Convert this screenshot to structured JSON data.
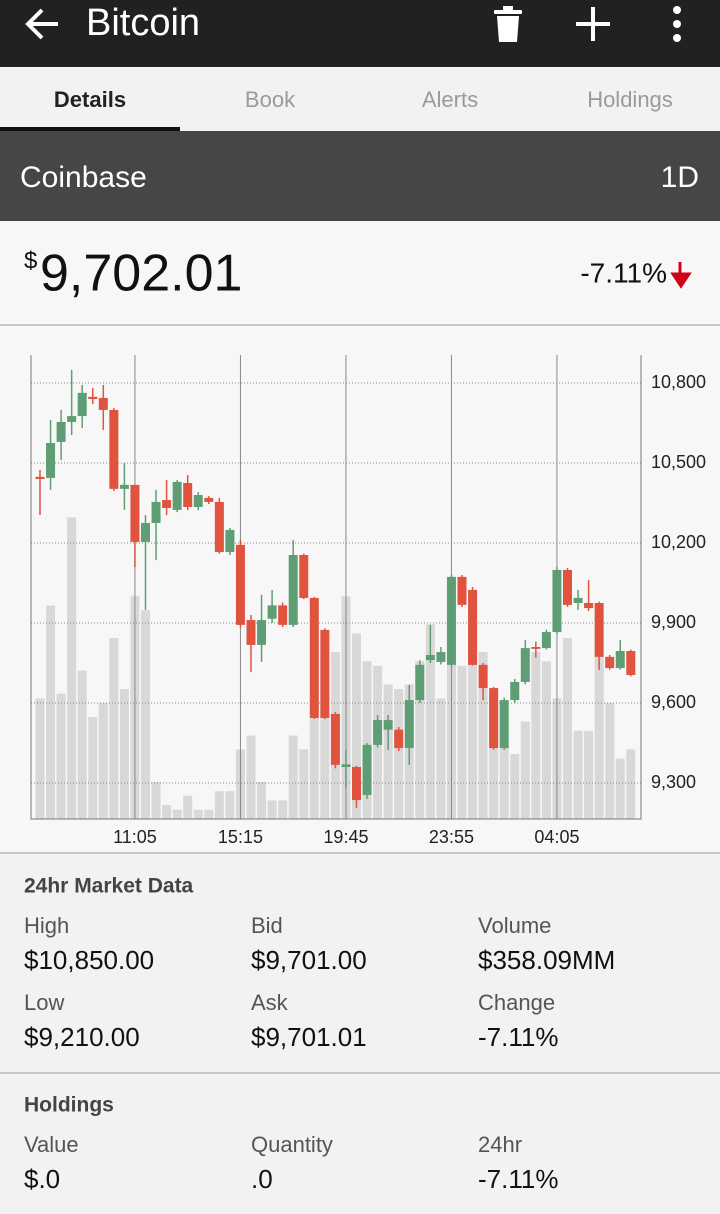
{
  "app_bar": {
    "title": "Bitcoin"
  },
  "tabs": {
    "items": [
      "Details",
      "Book",
      "Alerts",
      "Holdings"
    ],
    "selected": 0
  },
  "exchange": {
    "name": "Coinbase",
    "range": "1D"
  },
  "price": {
    "currency": "$",
    "value": "9,702.01",
    "change": "-7.11%"
  },
  "chart_data": {
    "type": "candlestick",
    "categories": [
      null,
      null,
      null,
      null,
      null,
      null,
      null,
      null,
      null,
      "11:05",
      null,
      null,
      null,
      null,
      null,
      null,
      null,
      null,
      null,
      "15:15",
      null,
      null,
      null,
      null,
      null,
      null,
      null,
      null,
      null,
      "19:45",
      null,
      null,
      null,
      null,
      null,
      null,
      null,
      null,
      null,
      "23:55",
      null,
      null,
      null,
      null,
      null,
      null,
      null,
      null,
      null,
      "04:05",
      null,
      null,
      null,
      null,
      null,
      null,
      null
    ],
    "open": [
      10448,
      10444,
      10579,
      10654,
      10676,
      10748,
      10744,
      10699,
      10403,
      10418,
      10204,
      10275,
      10361,
      10324,
      10425,
      10335,
      10369,
      10354,
      10166,
      10193,
      9911,
      9818,
      9916,
      9966,
      9893,
      10155,
      9994,
      9874,
      9559,
      9360,
      9360,
      9255,
      9443,
      9500,
      9500,
      9431,
      9611,
      9761,
      9754,
      9743,
      10073,
      10024,
      9743,
      9656,
      9431,
      9611,
      9679,
      9810,
      9806,
      9866,
      10099,
      9975,
      9975,
      9975,
      9773,
      9731,
      9795
    ],
    "high": [
      10474,
      10661,
      10699,
      10849,
      10793,
      10781,
      10793,
      10706,
      10500,
      10418,
      10305,
      10399,
      10436,
      10436,
      10455,
      10391,
      10376,
      10369,
      10256,
      10211,
      9930,
      10006,
      10024,
      9977,
      10211,
      10160,
      9998,
      9880,
      9566,
      9425,
      9364,
      9450,
      9555,
      9555,
      9510,
      9668,
      9760,
      9893,
      9810,
      10080,
      10080,
      10035,
      9750,
      9660,
      9620,
      9690,
      9836,
      9830,
      9875,
      10110,
      10106,
      10024,
      10061,
      9980,
      9780,
      9836,
      9800
    ],
    "low": [
      10305,
      10399,
      10511,
      10605,
      10631,
      10721,
      10624,
      10395,
      10324,
      10110,
      9949,
      10136,
      10305,
      10316,
      10324,
      10324,
      10346,
      10160,
      10155,
      9885,
      9716,
      9754,
      9900,
      9885,
      9885,
      9990,
      9540,
      9540,
      9355,
      9280,
      9206,
      9240,
      9433,
      9424,
      9420,
      9368,
      9600,
      9750,
      9745,
      9740,
      9960,
      9740,
      9611,
      9425,
      9424,
      9600,
      9670,
      9770,
      9800,
      9860,
      9960,
      9949,
      9945,
      9724,
      9725,
      9725,
      9700
    ],
    "close": [
      10440,
      10575,
      10654,
      10676,
      10763,
      10740,
      10699,
      10403,
      10418,
      10204,
      10275,
      10354,
      10331,
      10429,
      10335,
      10380,
      10354,
      10166,
      10249,
      9893,
      9818,
      9911,
      9966,
      9893,
      10155,
      9994,
      9544,
      9544,
      9368,
      9370,
      9236,
      9443,
      9536,
      9536,
      9431,
      9611,
      9743,
      9780,
      9791,
      10073,
      9968,
      9743,
      9656,
      9431,
      9611,
      9679,
      9806,
      9803,
      9866,
      10099,
      9968,
      9994,
      9956,
      9773,
      9731,
      9795,
      9705
    ],
    "volume": [
      26,
      46,
      27,
      65,
      32,
      22,
      25,
      39,
      28,
      48,
      45,
      8,
      3,
      2,
      5,
      2,
      2,
      6,
      6,
      15,
      18,
      8,
      4,
      4,
      18,
      15,
      22,
      34,
      36,
      48,
      40,
      34,
      33,
      29,
      28,
      29,
      34,
      42,
      26,
      41,
      33,
      47,
      36,
      26,
      16,
      14,
      21,
      36,
      34,
      26,
      39,
      19,
      19,
      35,
      25,
      13,
      15
    ],
    "volume_lim": [
      0,
      100
    ],
    "ylim": [
      9165,
      10905
    ],
    "yticks": [
      {
        "value": 9300,
        "label": "9,300"
      },
      {
        "value": 9600,
        "label": "9,600"
      },
      {
        "value": 9900,
        "label": "9,900"
      },
      {
        "value": 10200,
        "label": "10,200"
      },
      {
        "value": 10500,
        "label": "10,500"
      },
      {
        "value": 10800,
        "label": "10,800"
      }
    ],
    "up_color": "#5f9e74",
    "down_color": "#e0533f",
    "volume_color": "#d8d8d8",
    "grid": true
  },
  "market_data": {
    "title": "24hr Market Data",
    "items": [
      {
        "label": "High",
        "value": "$10,850.00"
      },
      {
        "label": "Bid",
        "value": "$9,701.00"
      },
      {
        "label": "Volume",
        "value": "$358.09MM"
      },
      {
        "label": "Low",
        "value": "$9,210.00"
      },
      {
        "label": "Ask",
        "value": "$9,701.01"
      },
      {
        "label": "Change",
        "value": "-7.11%"
      }
    ]
  },
  "holdings": {
    "title": "Holdings",
    "items": [
      {
        "label": "Value",
        "value": "$.0"
      },
      {
        "label": "Quantity",
        "value": ".0"
      },
      {
        "label": "24hr",
        "value": "-7.11%"
      }
    ]
  }
}
